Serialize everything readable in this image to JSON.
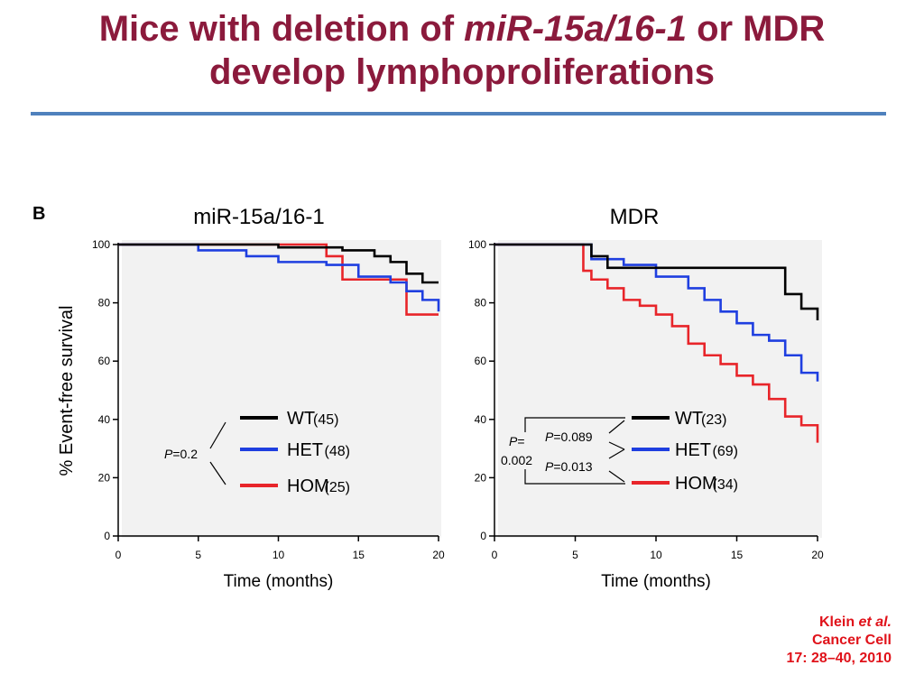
{
  "slide": {
    "title_part1": "Mice with deletion of ",
    "title_italic": "miR-15a/16-1",
    "title_part2": " or MDR",
    "title_line2": "develop lymphoproliferations",
    "rule_color": "#4f81bd",
    "title_color": "#8b1a3c"
  },
  "citation": {
    "author": "Klein ",
    "etal": "et al.",
    "journal": "Cancer Cell",
    "volume": "17: 28–40, 2010",
    "color": "#e0121a"
  },
  "figure": {
    "panel_label": "B",
    "ylabel": "% Event-free survival",
    "plot_background": "#f2f2f2"
  },
  "chart_data": [
    {
      "type": "line",
      "step": true,
      "title": "miR-15a/16-1",
      "xlabel": "Time (months)",
      "xlim": [
        0,
        20
      ],
      "ylim": [
        0,
        100
      ],
      "xticks": [
        0,
        5,
        10,
        15,
        20
      ],
      "yticks": [
        0,
        20,
        40,
        60,
        80,
        100
      ],
      "grid": false,
      "legend_placement": "bottom-center",
      "pvalues": [
        {
          "prefix": "P",
          "text": "=0.2"
        }
      ],
      "series": [
        {
          "name": "WT",
          "n": "(45)",
          "color": "#000000",
          "x": [
            0,
            10,
            14,
            16,
            17,
            18,
            19,
            20
          ],
          "y": [
            100,
            99,
            98,
            96,
            94,
            90,
            87,
            87
          ]
        },
        {
          "name": "HET",
          "n": "(48)",
          "color": "#1f3fe0",
          "x": [
            0,
            5,
            8,
            10,
            13,
            15,
            17,
            18,
            19,
            20
          ],
          "y": [
            100,
            98,
            96,
            94,
            93,
            89,
            87,
            84,
            81,
            77
          ]
        },
        {
          "name": "HOM",
          "n": "(25)",
          "color": "#e8252a",
          "x": [
            0,
            13,
            14,
            17,
            18,
            20
          ],
          "y": [
            100,
            96,
            88,
            88,
            76,
            76
          ]
        }
      ]
    },
    {
      "type": "line",
      "step": true,
      "title": "MDR",
      "xlabel": "Time (months)",
      "xlim": [
        0,
        20
      ],
      "ylim": [
        0,
        100
      ],
      "xticks": [
        0,
        5,
        10,
        15,
        20
      ],
      "yticks": [
        0,
        20,
        40,
        60,
        80,
        100
      ],
      "grid": false,
      "legend_placement": "bottom-center",
      "pvalues": [
        {
          "prefix": "P",
          "text": "=0.089"
        },
        {
          "prefix": "P",
          "text": "=0.013"
        },
        {
          "prefix": "P",
          "text": "=",
          "text2": "0.002"
        }
      ],
      "series": [
        {
          "name": "WT",
          "n": "(23)",
          "color": "#000000",
          "x": [
            0,
            5,
            6,
            7,
            16,
            18,
            19,
            20
          ],
          "y": [
            100,
            100,
            96,
            92,
            92,
            83,
            78,
            74
          ]
        },
        {
          "name": "HET",
          "n": "(69)",
          "color": "#1f3fe0",
          "x": [
            0,
            5,
            6,
            8,
            10,
            12,
            13,
            14,
            15,
            16,
            17,
            18,
            19,
            20
          ],
          "y": [
            100,
            100,
            95,
            93,
            89,
            85,
            81,
            77,
            73,
            69,
            67,
            62,
            56,
            53
          ]
        },
        {
          "name": "HOM",
          "n": "(34)",
          "color": "#e8252a",
          "x": [
            0,
            5,
            5.5,
            6,
            7,
            8,
            9,
            10,
            11,
            12,
            13,
            14,
            15,
            16,
            17,
            18,
            19,
            20
          ],
          "y": [
            100,
            100,
            91,
            88,
            85,
            81,
            79,
            76,
            72,
            66,
            62,
            59,
            55,
            52,
            47,
            41,
            38,
            32
          ]
        }
      ]
    }
  ]
}
